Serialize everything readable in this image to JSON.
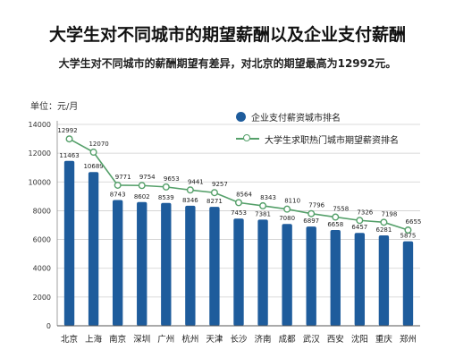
{
  "chart_data": {
    "type": "bar",
    "title": "大学生对不同城市的期望薪酬以及企业支付薪酬",
    "subtitle": "大学生对不同城市的薪酬期望有差异，对北京的期望最高为12992元。",
    "ylabel": "单位：元/月",
    "ylim": [
      0,
      14000
    ],
    "yticks": [
      0,
      2000,
      4000,
      6000,
      8000,
      10000,
      12000,
      14000
    ],
    "grid": true,
    "legend_position": "top-right",
    "categories": [
      "北京",
      "上海",
      "南京",
      "深圳",
      "广州",
      "杭州",
      "天津",
      "长沙",
      "济南",
      "成都",
      "武汉",
      "西安",
      "沈阳",
      "重庆",
      "郑州"
    ],
    "series": [
      {
        "name": "企业支付薪资城市排名",
        "type": "bar",
        "color": "#1e5c9c",
        "values": [
          11463,
          10689,
          8743,
          8602,
          8539,
          8346,
          8271,
          7453,
          7381,
          7080,
          6897,
          6658,
          6457,
          6281,
          5875
        ]
      },
      {
        "name": "大学生求职热门城市期望薪资排名",
        "type": "line",
        "color": "#55a06a",
        "values": [
          12992,
          12070,
          9771,
          9754,
          9653,
          9441,
          9257,
          8564,
          8343,
          8110,
          7796,
          7558,
          7326,
          7198,
          6655
        ]
      }
    ]
  }
}
